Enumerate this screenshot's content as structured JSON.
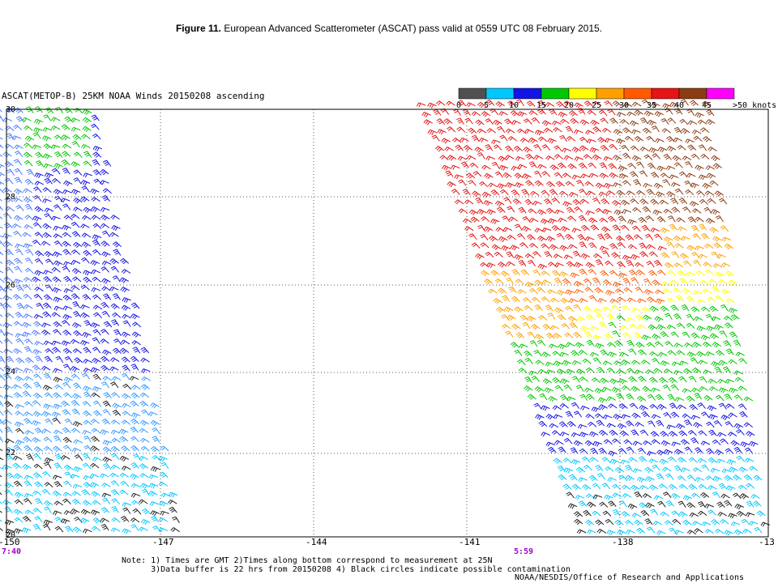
{
  "caption": {
    "figure_label": "Figure 11.",
    "text": " European Advanced Scatterometer (ASCAT) pass valid at 0559 UTC 08 February 2015."
  },
  "plot_title": "ASCAT(METOP-B) 25KM NOAA Winds 20150208 ascending",
  "legend": {
    "labels": [
      "0",
      "5",
      "10",
      "15",
      "20",
      "25",
      "30",
      "35",
      "40",
      "45",
      ">50 knots"
    ],
    "colors": [
      "#505050",
      "#00c8ff",
      "#1414e6",
      "#00c800",
      "#ffff00",
      "#ffa000",
      "#ff5a00",
      "#e61414",
      "#8c3c14",
      "#ff00ff",
      "#6400a0"
    ]
  },
  "axes": {
    "lon_labels": [
      "-150",
      "-147",
      "-144",
      "-141",
      "-138",
      "-13"
    ],
    "lat_labels": [
      "30",
      "28",
      "26",
      "24",
      "22",
      "20"
    ]
  },
  "pass_times": {
    "left": "7:40",
    "right": "5:59",
    "color": "#a000c8"
  },
  "notes": [
    "Note: 1) Times are GMT 2)Times along bottom correspond to measurement at 25N",
    "      3)Data buffer is 22 hrs from 20150208 4) Black circles indicate possible contamination"
  ],
  "credit": "NOAA/NESDIS/Office of Research and Applications"
}
